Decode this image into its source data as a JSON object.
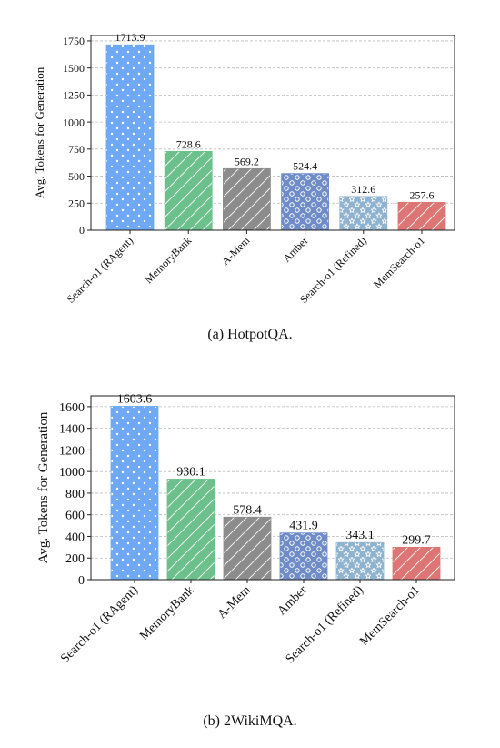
{
  "chart_data": [
    {
      "type": "bar",
      "caption": "(a) HotpotQA.",
      "ylabel": "Avg. Tokens for Generation",
      "categories": [
        "Search-o1 (RAgent)",
        "MemoryBank",
        "A-Mem",
        "Amber",
        "Search-o1 (Refined)",
        "MemSearch-o1"
      ],
      "values": [
        1713.9,
        728.6,
        569.2,
        524.4,
        312.6,
        257.6
      ],
      "colors": [
        "#6fa8f5",
        "#6cc08b",
        "#8c8c8c",
        "#6f8cc8",
        "#8fb2cf",
        "#dd7574"
      ],
      "hatches": [
        "dots",
        "slash",
        "slash",
        "circles",
        "stars",
        "slash"
      ],
      "ylim": [
        0,
        1800
      ],
      "yticks": [
        0,
        250,
        500,
        750,
        1000,
        1250,
        1500,
        1750
      ],
      "grid": true
    },
    {
      "type": "bar",
      "caption": "(b) 2WikiMQA.",
      "ylabel": "Avg. Tokens for Generation",
      "categories": [
        "Search-o1 (RAgent)",
        "MemoryBank",
        "A-Mem",
        "Amber",
        "Search-o1 (Refined)",
        "MemSearch-o1"
      ],
      "values": [
        1603.6,
        930.1,
        578.4,
        431.9,
        343.1,
        299.7
      ],
      "colors": [
        "#6fa8f5",
        "#6cc08b",
        "#8c8c8c",
        "#6f8cc8",
        "#8fb2cf",
        "#dd7574"
      ],
      "hatches": [
        "dots",
        "slash",
        "slash",
        "circles",
        "stars",
        "slash"
      ],
      "ylim": [
        0,
        1700
      ],
      "yticks": [
        0,
        200,
        400,
        600,
        800,
        1000,
        1200,
        1400,
        1600
      ],
      "grid": true
    }
  ]
}
